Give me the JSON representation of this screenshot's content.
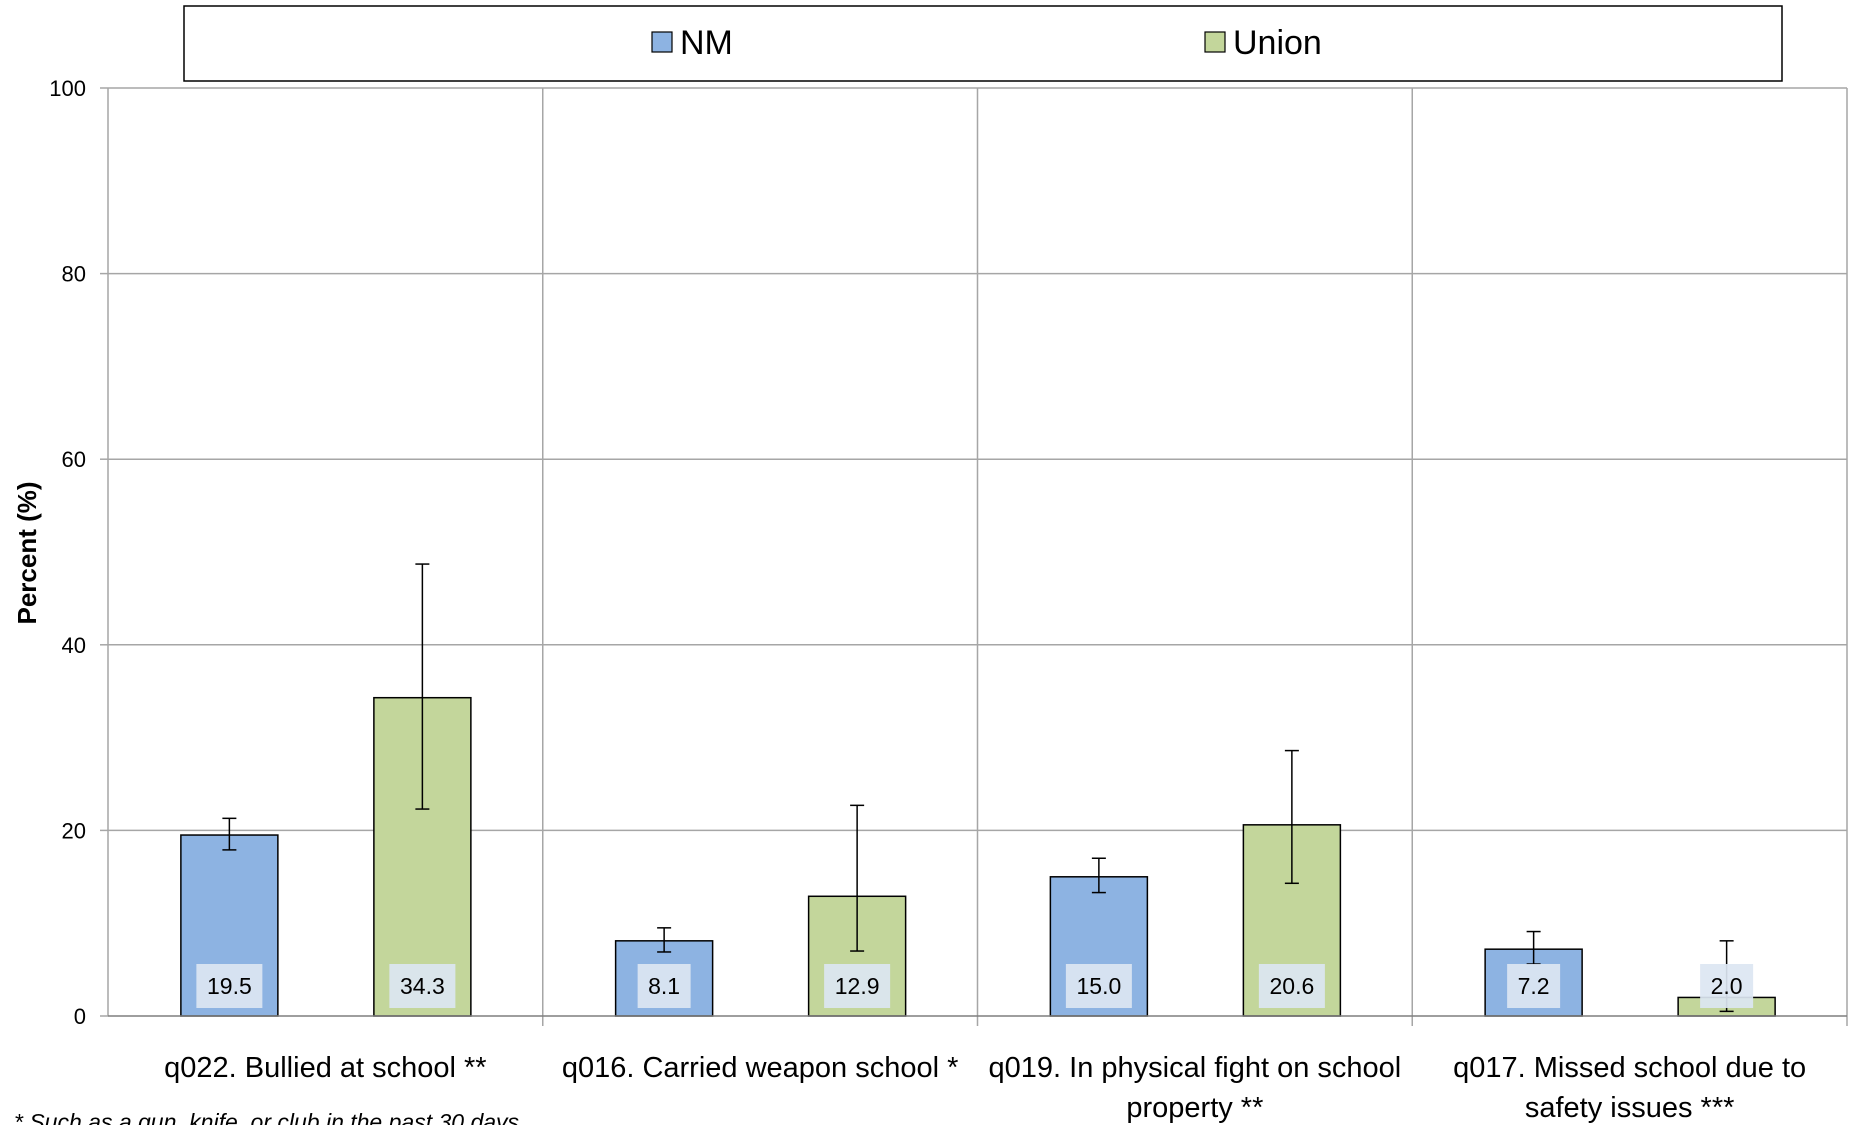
{
  "colors": {
    "nm_fill": "#8DB3E2",
    "nm_stroke": "#000000",
    "union_fill": "#C3D69B",
    "union_stroke": "#000000",
    "grid": "#A6A6A6",
    "label_box": "#DCE6F2"
  },
  "chart_data": {
    "type": "bar",
    "title": "",
    "xlabel": "",
    "ylabel": "Percent (%)",
    "ylim": [
      0,
      100
    ],
    "yticks": [
      0,
      20,
      40,
      60,
      80,
      100
    ],
    "grid": true,
    "legend_position": "top",
    "categories": [
      {
        "lines": [
          "q022. Bullied at school **"
        ]
      },
      {
        "lines": [
          "q016. Carried weapon school *"
        ]
      },
      {
        "lines": [
          "q019. In physical fight on school",
          "property **"
        ]
      },
      {
        "lines": [
          "q017. Missed school due to",
          "safety issues ***"
        ]
      }
    ],
    "series": [
      {
        "name": "NM",
        "values": [
          19.5,
          8.1,
          15.0,
          7.2
        ],
        "labels": [
          "19.5",
          "8.1",
          "15.0",
          "7.2"
        ],
        "error_low": [
          17.9,
          6.9,
          13.3,
          5.6
        ],
        "error_high": [
          21.3,
          9.5,
          17.0,
          9.1
        ]
      },
      {
        "name": "Union",
        "values": [
          34.3,
          12.9,
          20.6,
          2.0
        ],
        "labels": [
          "34.3",
          "12.9",
          "20.6",
          "2.0"
        ],
        "error_low": [
          22.3,
          7.0,
          14.3,
          0.5
        ],
        "error_high": [
          48.7,
          22.7,
          28.6,
          8.1
        ]
      }
    ],
    "footnote": "* Such as a gun, knife, or club in the past 30 days"
  }
}
